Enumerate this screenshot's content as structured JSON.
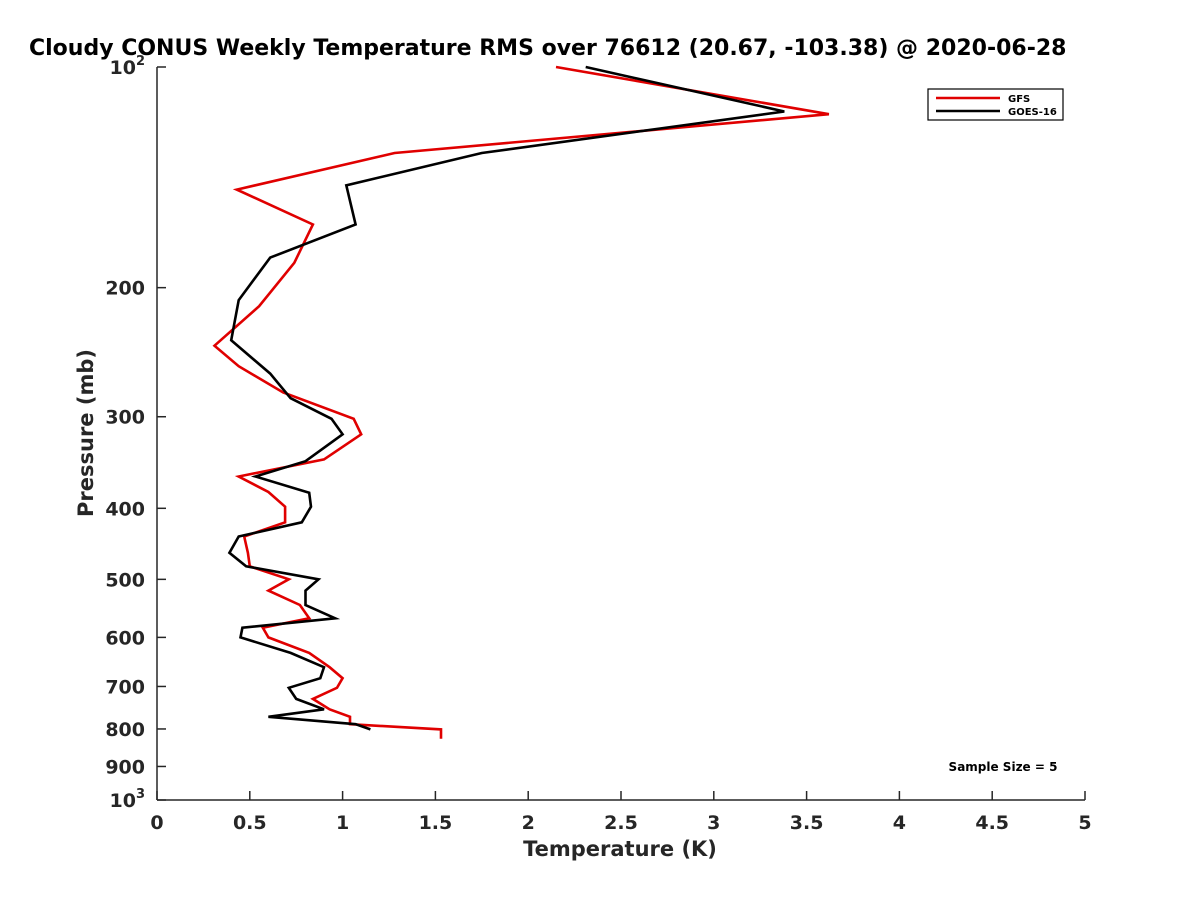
{
  "chart_data": {
    "type": "line",
    "title": "Cloudy CONUS Weekly Temperature RMS over 76612 (20.67, -103.38) @ 2020-06-28",
    "xlabel": "Temperature (K)",
    "ylabel": "Pressure (mb)",
    "xlim": [
      0,
      5
    ],
    "ylim": [
      100,
      1000
    ],
    "y_scale": "log",
    "y_reversed": true,
    "grid": false,
    "legend_position": "top-right",
    "x_ticks": [
      "0",
      "0.5",
      "1",
      "1.5",
      "2",
      "2.5",
      "3",
      "3.5",
      "4",
      "4.5",
      "5"
    ],
    "y_ticks": [
      {
        "value": 100,
        "base": "10",
        "exp": "2"
      },
      {
        "value": 200,
        "base": "200",
        "exp": ""
      },
      {
        "value": 300,
        "base": "300",
        "exp": ""
      },
      {
        "value": 400,
        "base": "400",
        "exp": ""
      },
      {
        "value": 500,
        "base": "500",
        "exp": ""
      },
      {
        "value": 600,
        "base": "600",
        "exp": ""
      },
      {
        "value": 700,
        "base": "700",
        "exp": ""
      },
      {
        "value": 800,
        "base": "800",
        "exp": ""
      },
      {
        "value": 900,
        "base": "900",
        "exp": ""
      },
      {
        "value": 1000,
        "base": "10",
        "exp": "3"
      }
    ],
    "annotation": "Sample Size = 5",
    "series": [
      {
        "name": "GFS",
        "color": "#e00000",
        "points": [
          [
            2.15,
            100
          ],
          [
            3.62,
            116
          ],
          [
            1.28,
            131
          ],
          [
            0.43,
            147
          ],
          [
            0.84,
            164
          ],
          [
            0.74,
            185
          ],
          [
            0.55,
            212
          ],
          [
            0.31,
            240
          ],
          [
            0.44,
            256
          ],
          [
            0.68,
            278
          ],
          [
            1.06,
            302
          ],
          [
            1.1,
            317
          ],
          [
            0.9,
            343
          ],
          [
            0.44,
            362
          ],
          [
            0.6,
            380
          ],
          [
            0.69,
            398
          ],
          [
            0.69,
            418
          ],
          [
            0.47,
            437
          ],
          [
            0.49,
            460
          ],
          [
            0.5,
            480
          ],
          [
            0.71,
            500
          ],
          [
            0.6,
            518
          ],
          [
            0.77,
            542
          ],
          [
            0.82,
            565
          ],
          [
            0.57,
            582
          ],
          [
            0.6,
            600
          ],
          [
            0.82,
            630
          ],
          [
            0.93,
            659
          ],
          [
            1.0,
            682
          ],
          [
            0.97,
            703
          ],
          [
            0.84,
            728
          ],
          [
            0.93,
            752
          ],
          [
            1.04,
            770
          ],
          [
            1.04,
            788
          ],
          [
            1.53,
            801
          ],
          [
            1.53,
            825
          ]
        ]
      },
      {
        "name": "GOES-16",
        "color": "#000000",
        "points": [
          [
            2.31,
            100
          ],
          [
            3.38,
            115
          ],
          [
            1.75,
            131
          ],
          [
            1.02,
            145
          ],
          [
            1.07,
            164
          ],
          [
            0.61,
            182
          ],
          [
            0.44,
            208
          ],
          [
            0.4,
            236
          ],
          [
            0.61,
            262
          ],
          [
            0.72,
            283
          ],
          [
            0.94,
            302
          ],
          [
            1.0,
            317
          ],
          [
            0.8,
            345
          ],
          [
            0.53,
            362
          ],
          [
            0.82,
            381
          ],
          [
            0.83,
            398
          ],
          [
            0.78,
            418
          ],
          [
            0.44,
            437
          ],
          [
            0.39,
            460
          ],
          [
            0.48,
            480
          ],
          [
            0.87,
            500
          ],
          [
            0.8,
            518
          ],
          [
            0.8,
            542
          ],
          [
            0.96,
            565
          ],
          [
            0.46,
            582
          ],
          [
            0.45,
            600
          ],
          [
            0.72,
            630
          ],
          [
            0.9,
            659
          ],
          [
            0.88,
            682
          ],
          [
            0.71,
            703
          ],
          [
            0.75,
            728
          ],
          [
            0.9,
            752
          ],
          [
            0.6,
            770
          ],
          [
            1.07,
            788
          ],
          [
            1.15,
            801
          ]
        ]
      }
    ]
  }
}
